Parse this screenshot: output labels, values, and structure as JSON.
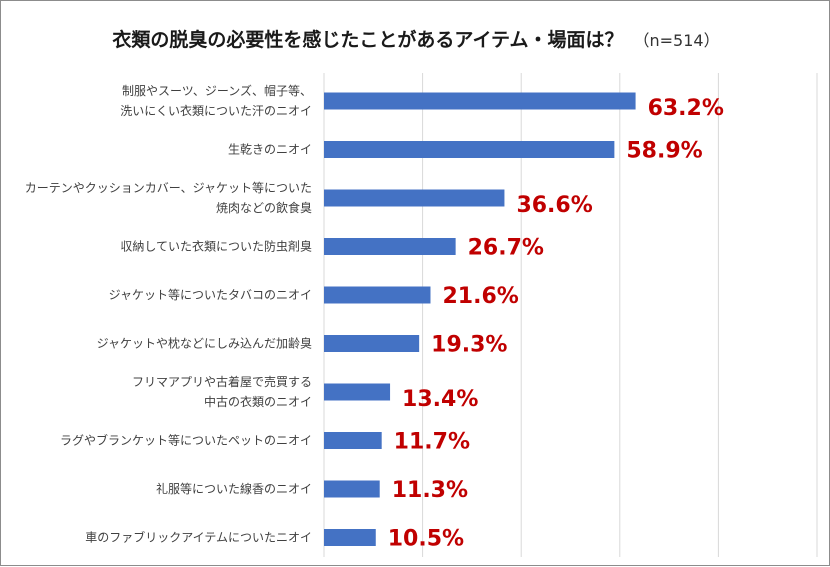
{
  "title": "衣類の脱臭の必要性を感じたことがあるアイテム・場面は？",
  "sample": "（n=514）",
  "colors": {
    "bar": "#4472c4",
    "value_label": "#c00000",
    "grid": "#d9d9d9",
    "category_text": "#404040"
  },
  "chart_data": {
    "type": "bar",
    "orientation": "horizontal",
    "title": "衣類の脱臭の必要性を感じたことがあるアイテム・場面は？",
    "subtitle": "（n=514）",
    "unit": "%",
    "xlim": [
      0,
      100
    ],
    "grid": true,
    "legend": "none",
    "categories": [
      [
        "制服やスーツ、ジーンズ、帽子等、",
        "洗いにくい衣類についた汗のニオイ"
      ],
      [
        "生乾きのニオイ"
      ],
      [
        "カーテンやクッションカバー、ジャケット等についた",
        "焼肉などの飲食臭"
      ],
      [
        "収納していた衣類についた防虫剤臭"
      ],
      [
        "ジャケット等についたタバコのニオイ"
      ],
      [
        "ジャケットや枕などにしみ込んだ加齢臭"
      ],
      [
        "フリマアプリや古着屋で売買する",
        "中古の衣類のニオイ"
      ],
      [
        "ラグやブランケット等についたペットのニオイ"
      ],
      [
        "礼服等についた線香のニオイ"
      ],
      [
        "車のファブリックアイテムについたニオイ"
      ]
    ],
    "values": [
      63.2,
      58.9,
      36.6,
      26.7,
      21.6,
      19.3,
      13.4,
      11.7,
      11.3,
      10.5
    ],
    "value_labels": [
      "63.2%",
      "58.9%",
      "36.6%",
      "26.7%",
      "21.6%",
      "19.3%",
      "13.4%",
      "11.7%",
      "11.3%",
      "10.5%"
    ]
  }
}
